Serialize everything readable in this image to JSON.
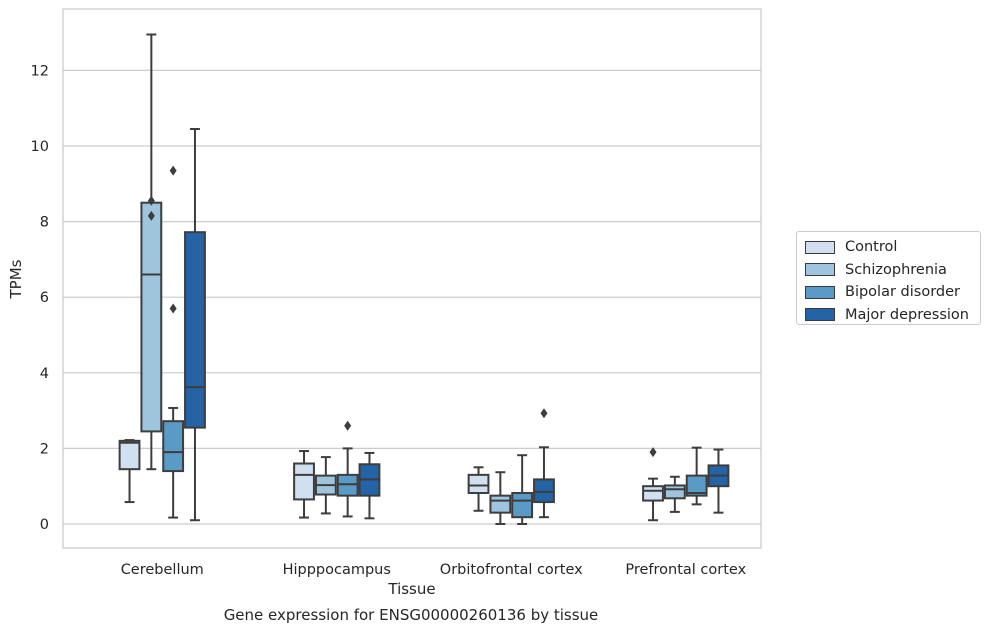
{
  "caption": "Gene expression for ENSG00000260136 by tissue",
  "chart_data": {
    "type": "boxplot",
    "xlabel": "Tissue",
    "ylabel": "TPMs",
    "ylim": [
      -0.6,
      13.6
    ],
    "yticks": [
      0,
      2,
      4,
      6,
      8,
      10,
      12
    ],
    "grid": "horizontal",
    "legend_position": "right",
    "categories": [
      "Cerebellum",
      "Hipppocampus",
      "Orbitofrontal cortex",
      "Prefrontal cortex"
    ],
    "series": [
      {
        "name": "Control",
        "color": "#d0e0f0",
        "boxes": [
          {
            "whislo": 0.58,
            "q1": 1.45,
            "med": 2.15,
            "q3": 2.2,
            "whishi": 2.22,
            "fliers": []
          },
          {
            "whislo": 0.17,
            "q1": 0.65,
            "med": 1.3,
            "q3": 1.6,
            "whishi": 1.93,
            "fliers": []
          },
          {
            "whislo": 0.35,
            "q1": 0.82,
            "med": 1.02,
            "q3": 1.3,
            "whishi": 1.5,
            "fliers": []
          },
          {
            "whislo": 0.1,
            "q1": 0.62,
            "med": 0.88,
            "q3": 1.0,
            "whishi": 1.2,
            "fliers": [
              1.9
            ]
          }
        ]
      },
      {
        "name": "Schizophrenia",
        "color": "#9ec4de",
        "boxes": [
          {
            "whislo": 1.45,
            "q1": 2.45,
            "med": 6.6,
            "q3": 8.5,
            "whishi": 12.95,
            "fliers": [
              8.55,
              8.15
            ]
          },
          {
            "whislo": 0.28,
            "q1": 0.78,
            "med": 1.03,
            "q3": 1.28,
            "whishi": 1.77,
            "fliers": []
          },
          {
            "whislo": 0.0,
            "q1": 0.3,
            "med": 0.62,
            "q3": 0.75,
            "whishi": 1.37,
            "fliers": []
          },
          {
            "whislo": 0.32,
            "q1": 0.68,
            "med": 0.92,
            "q3": 1.02,
            "whishi": 1.25,
            "fliers": []
          }
        ]
      },
      {
        "name": "Bipolar disorder",
        "color": "#5a9ac7",
        "boxes": [
          {
            "whislo": 0.17,
            "q1": 1.4,
            "med": 1.9,
            "q3": 2.72,
            "whishi": 3.07,
            "fliers": [
              9.35,
              5.7
            ]
          },
          {
            "whislo": 0.2,
            "q1": 0.75,
            "med": 1.05,
            "q3": 1.3,
            "whishi": 2.0,
            "fliers": [
              2.6
            ]
          },
          {
            "whislo": 0.0,
            "q1": 0.18,
            "med": 0.62,
            "q3": 0.82,
            "whishi": 1.82,
            "fliers": []
          },
          {
            "whislo": 0.52,
            "q1": 0.75,
            "med": 0.82,
            "q3": 1.28,
            "whishi": 2.02,
            "fliers": []
          }
        ]
      },
      {
        "name": "Major depression",
        "color": "#2463a6",
        "boxes": [
          {
            "whislo": 0.1,
            "q1": 2.55,
            "med": 3.62,
            "q3": 7.72,
            "whishi": 10.45,
            "fliers": []
          },
          {
            "whislo": 0.15,
            "q1": 0.75,
            "med": 1.18,
            "q3": 1.58,
            "whishi": 1.88,
            "fliers": []
          },
          {
            "whislo": 0.18,
            "q1": 0.58,
            "med": 0.85,
            "q3": 1.18,
            "whishi": 2.03,
            "fliers": [
              2.93
            ]
          },
          {
            "whislo": 0.3,
            "q1": 1.0,
            "med": 1.28,
            "q3": 1.55,
            "whishi": 1.97,
            "fliers": []
          }
        ]
      }
    ]
  }
}
